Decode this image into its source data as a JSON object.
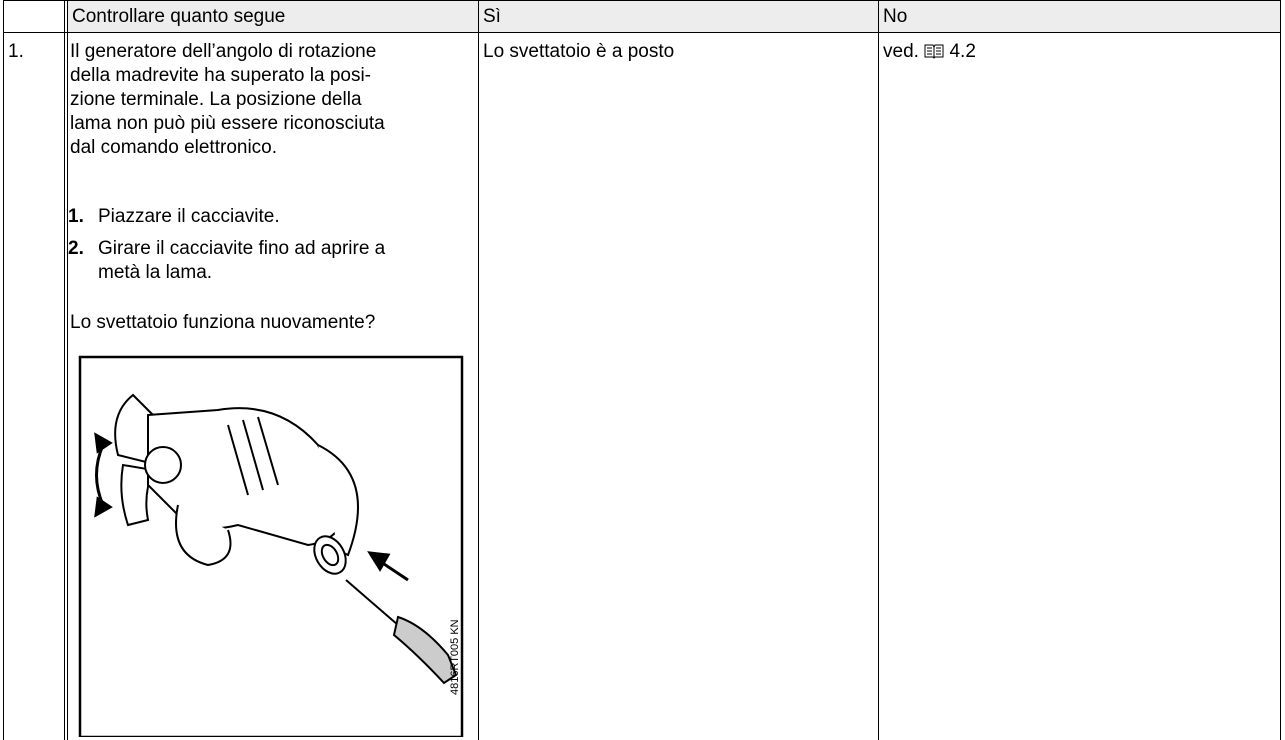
{
  "table": {
    "header": [
      "Controllare quanto segue",
      "Sì",
      "No"
    ],
    "rows": [
      {
        "number": "1.",
        "description": [
          "Il generatore dell’angolo di rotazione",
          "della madrevite ha superato la posi-",
          "zione terminale. La posizione della",
          "lama non può più essere riconosciuta",
          "dal comando elettronico."
        ],
        "steps": [
          {
            "number": "1.",
            "lines": [
              "Piazzare il cacciavite."
            ]
          },
          {
            "number": "2.",
            "lines": [
              "Girare il cacciavite fino ad aprire a",
              "metà la lama."
            ]
          }
        ],
        "question": "Lo svettatoio funziona nuovamente?",
        "figure_code": "4816RT005 KN",
        "yes": "Lo svettatoio è a posto",
        "no": {
          "prefix": "ved.",
          "ref": "4.2"
        }
      }
    ]
  }
}
